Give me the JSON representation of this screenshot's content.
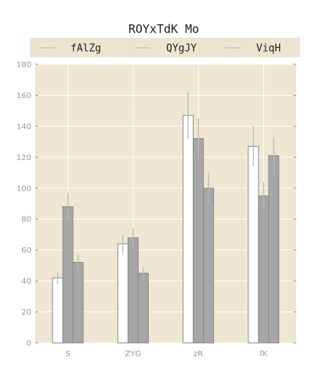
{
  "chart_data": {
    "type": "bar",
    "title": "ROYxTdK Mo",
    "xlabel": "",
    "ylabel": "",
    "categories": [
      "S",
      "ZYG",
      "zR",
      "fK"
    ],
    "ylim": [
      0,
      180
    ],
    "yticks": [
      0,
      20,
      40,
      60,
      80,
      100,
      120,
      140,
      160,
      180
    ],
    "grid": true,
    "legend_position": "top",
    "series": [
      {
        "name": "fAlZg",
        "values": [
          42,
          64,
          147,
          127
        ],
        "errors": [
          4,
          6,
          15,
          13
        ],
        "color": "#ffffff"
      },
      {
        "name": "QYgJY",
        "values": [
          88,
          68,
          132,
          95
        ],
        "errors": [
          9,
          6,
          13,
          9
        ],
        "color": "#a6a6a6"
      },
      {
        "name": "ViqH",
        "values": [
          52,
          45,
          100,
          121
        ],
        "errors": [
          5,
          4,
          10,
          12
        ],
        "color": "#a6a6a6"
      }
    ],
    "colors": {
      "plot_background": "#efe7d3",
      "legend_background": "#ece5d1",
      "grid": "#ffffff",
      "bar_edge": "#8a8a8a",
      "error_bar": "#b8b8b8"
    }
  }
}
